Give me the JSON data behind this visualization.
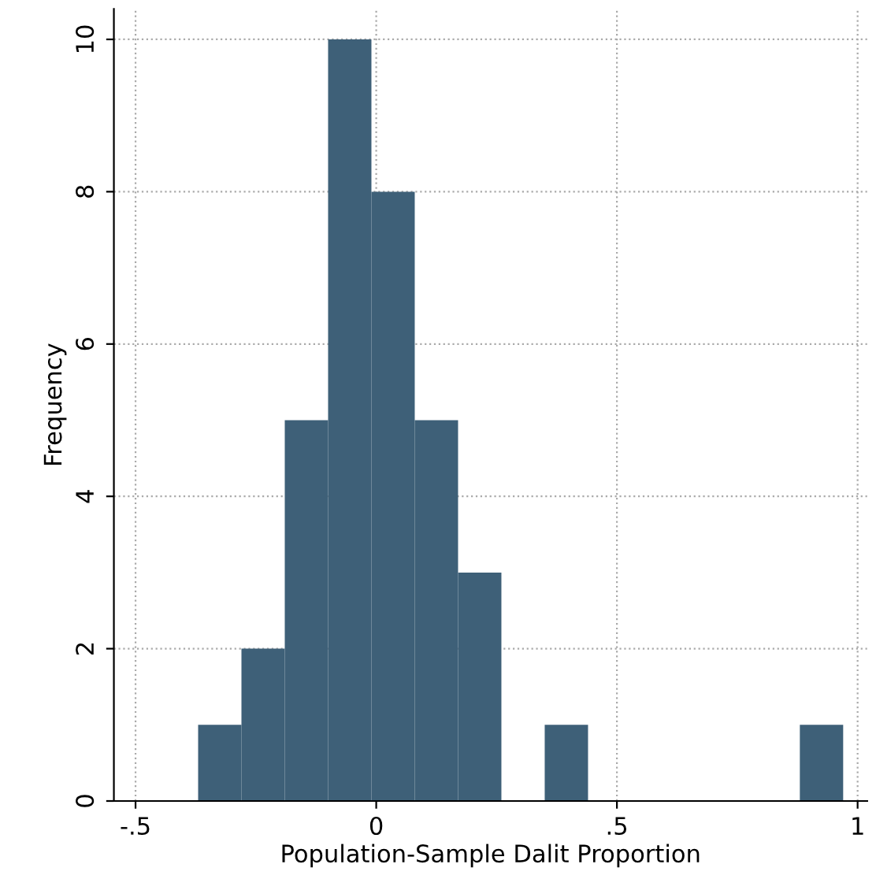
{
  "chart_data": {
    "type": "histogram",
    "xlabel": "Population-Sample Dalit Proportion",
    "ylabel": "Frequency",
    "bins": [
      -0.37,
      -0.28,
      -0.19,
      -0.1,
      -0.01,
      0.08,
      0.17,
      0.26,
      0.35,
      0.44,
      0.88,
      0.97
    ],
    "values": [
      1,
      2,
      5,
      10,
      8,
      5,
      3,
      0,
      1,
      0,
      1
    ],
    "color": "#3e6078",
    "xlim": [
      -0.545,
      1.02
    ],
    "ylim": [
      0,
      10.4
    ],
    "xticks": [
      {
        "value": -0.5,
        "label": "-.5"
      },
      0,
      {
        "value": 0.5,
        "label": ".5"
      },
      1
    ],
    "yticks": [
      0,
      2,
      4,
      6,
      8,
      10
    ],
    "grid": true
  }
}
